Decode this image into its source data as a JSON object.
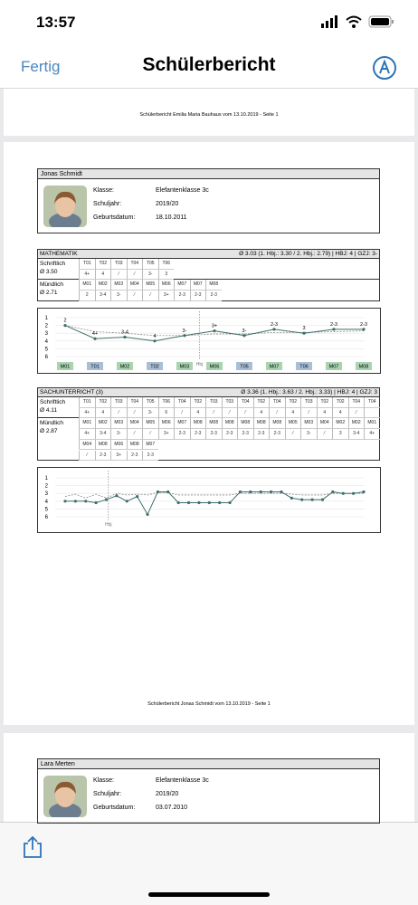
{
  "status_bar": {
    "time": "13:57"
  },
  "nav": {
    "done": "Fertig",
    "title": "Schülerbericht"
  },
  "previous_page": {
    "footer": "Schülerbericht Emilia Maria Bauhaus vom 13.10.2019 - Seite 1"
  },
  "report": {
    "student": {
      "name": "Jonas Schmidt",
      "fields": [
        [
          "Klasse:",
          "Elefantenklasse 3c"
        ],
        [
          "Schuljahr:",
          "2019/20"
        ],
        [
          "Geburtsdatum:",
          "18.10.2011"
        ]
      ]
    },
    "subjects": [
      {
        "header": "MATHEMATIK",
        "summary": "Ø 3.03 (1. Hbj.: 3.30 / 2. Hbj.: 2.79) | HBJ: 4 | GZJ: 3-",
        "rows": [
          {
            "label": "Schriftlich",
            "avg": "Ø 3.50",
            "lines": [
              {
                "codes": [
                  "T01",
                  "T02",
                  "T03",
                  "T04",
                  "T05",
                  "T06"
                ],
                "grades": [
                  "4+",
                  "4",
                  "⁄",
                  "⁄",
                  "3-",
                  "3"
                ]
              }
            ]
          },
          {
            "label": "Mündlich",
            "avg": "Ø 2.71",
            "lines": [
              {
                "codes": [
                  "M01",
                  "M02",
                  "M03",
                  "M04",
                  "M05",
                  "M06",
                  "M07",
                  "M07",
                  "M08"
                ],
                "grades": [
                  "2",
                  "3-4",
                  "3-",
                  "⁄",
                  "⁄",
                  "3+",
                  "2-3",
                  "2-3",
                  "2-3"
                ]
              }
            ]
          }
        ],
        "chart": {
          "type": "line",
          "hbj_label": "Hbj",
          "line_color": "#3f6f6a",
          "categories": [
            "M01",
            "T01",
            "M02",
            "T02",
            "M03",
            "M06",
            "T05",
            "M07",
            "T06",
            "M07",
            "M08"
          ],
          "values": [
            2,
            3.7,
            3.5,
            4,
            3.3,
            2.7,
            3.3,
            2.5,
            3,
            2.5,
            2.5
          ],
          "value_labels": [
            "2",
            "4+",
            "3-4",
            "4",
            "3-",
            "3+",
            "3-",
            "2-3",
            "3",
            "2-3",
            "2-3"
          ],
          "average": [
            2,
            2.8,
            3,
            3.3,
            3.3,
            3.1,
            3.1,
            2.9,
            2.9,
            2.8,
            2.7
          ],
          "ylim": [
            6,
            1
          ],
          "yticks": [
            1,
            2,
            3,
            4,
            5,
            6
          ]
        }
      },
      {
        "header": "SACHUNTERRICHT (3)",
        "summary": "Ø 3.36 (1. Hbj.: 3.63 / 2. Hbj.: 3.33) | HBJ: 4 | GZJ: 3",
        "rows": [
          {
            "label": "Schriftlich",
            "avg": "Ø 4.11",
            "lines": [
              {
                "codes": [
                  "T01",
                  "T02",
                  "T03",
                  "T04",
                  "T05",
                  "T06",
                  "T04",
                  "T02",
                  "T03",
                  "T03",
                  "T04",
                  "T02",
                  "T04",
                  "T02",
                  "T03",
                  "T02",
                  "T02",
                  "T04",
                  "T04"
                ],
                "grades": [
                  "4+",
                  "4",
                  "⁄",
                  "⁄",
                  "3-",
                  "6",
                  "⁄",
                  "4",
                  "⁄",
                  "⁄",
                  "⁄",
                  "4",
                  "⁄",
                  "4",
                  "⁄",
                  "4",
                  "4",
                  "⁄",
                  ""
                ]
              }
            ]
          },
          {
            "label": "Mündlich",
            "avg": "Ø 2.87",
            "lines": [
              {
                "codes": [
                  "M01",
                  "M02",
                  "M03",
                  "M04",
                  "M05",
                  "M06",
                  "M07",
                  "M08",
                  "M08",
                  "M08",
                  "M08",
                  "M08",
                  "M08",
                  "M05",
                  "M03",
                  "M04",
                  "M02",
                  "M02",
                  "M01"
                ],
                "grades": [
                  "4+",
                  "3-4",
                  "3-",
                  "⁄",
                  "⁄",
                  "3+",
                  "2-3",
                  "2-3",
                  "2-3",
                  "2-3",
                  "2-3",
                  "2-3",
                  "2-3",
                  "⁄",
                  "3-",
                  "⁄",
                  "3",
                  "3-4",
                  "4+"
                ]
              },
              {
                "codes": [
                  "M04",
                  "M08",
                  "M06",
                  "M08",
                  "M07"
                ],
                "grades": [
                  "⁄",
                  "2-3",
                  "3+",
                  "2-3",
                  "2-3"
                ]
              }
            ]
          }
        ],
        "chart": {
          "type": "line",
          "hbj_label": "Hbj",
          "line_color": "#3f6f6a",
          "values": [
            4,
            4,
            4,
            4.2,
            3.8,
            3.3,
            4,
            3.4,
            5.7,
            2.8,
            2.8,
            4.2,
            4.2,
            4.2,
            4.2,
            4.2,
            4.2,
            2.8,
            2.8,
            2.8,
            2.8,
            2.8,
            3.6,
            3.8,
            3.8,
            3.8,
            2.8,
            3,
            3,
            2.8
          ],
          "average": [
            3.4,
            3.1,
            3.6,
            3.1,
            3.6,
            3,
            3.2,
            3.1,
            3.2,
            2.9,
            2.9,
            3.2,
            3.2,
            3.2,
            3.2,
            3.2,
            3.2,
            3,
            3,
            3,
            3,
            3,
            3.1,
            3.2,
            3.2,
            3.2,
            3,
            3,
            3,
            3
          ],
          "ylim": [
            6,
            1
          ],
          "yticks": [
            1,
            2,
            3,
            4,
            5,
            6
          ]
        }
      }
    ],
    "footer": "Schülerbericht Jonas Schmidt vom 13.10.2019 - Seite 1"
  },
  "next_report": {
    "student": {
      "name": "Lara Merten",
      "fields": [
        [
          "Klasse:",
          "Elefantenklasse 3c"
        ],
        [
          "Schuljahr:",
          "2019/20"
        ],
        [
          "Geburtsdatum:",
          "03.07.2010"
        ]
      ]
    }
  }
}
